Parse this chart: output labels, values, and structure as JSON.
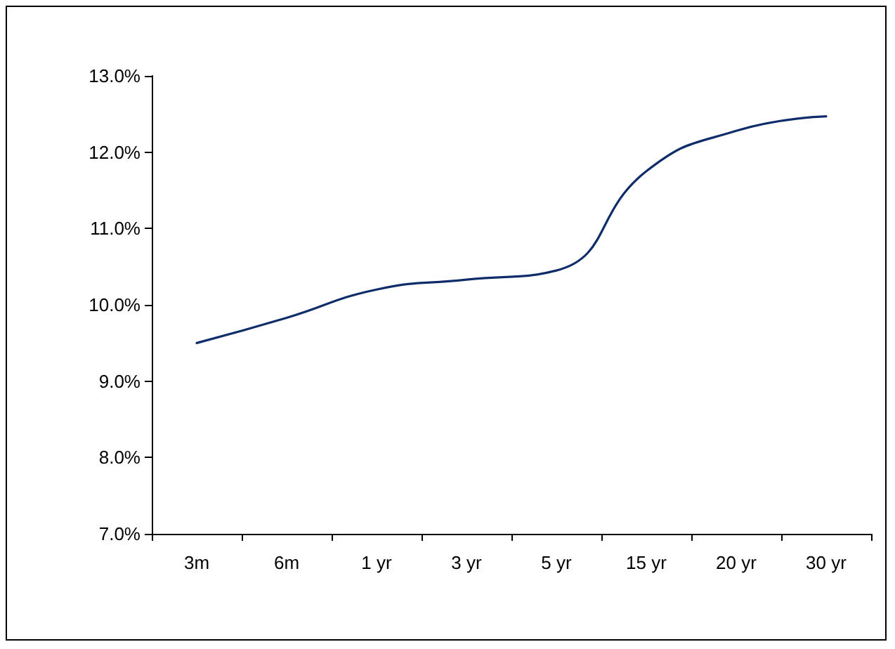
{
  "chart_data": {
    "type": "line",
    "categories": [
      "3m",
      "6m",
      "1 yr",
      "3 yr",
      "5 yr",
      "15 yr",
      "20 yr",
      "30 yr"
    ],
    "series": [
      {
        "color": "#0f2d6b",
        "values": [
          9.5,
          9.83,
          10.2,
          10.33,
          10.45,
          11.75,
          12.28,
          12.47
        ]
      }
    ],
    "ylim": [
      7,
      13
    ],
    "yticks": [
      {
        "value": 7,
        "label": "7.0%"
      },
      {
        "value": 8,
        "label": "8.0%"
      },
      {
        "value": 9,
        "label": "9.0%"
      },
      {
        "value": 10,
        "label": "10.0%"
      },
      {
        "value": 11,
        "label": "11.0%"
      },
      {
        "value": 12,
        "label": "12.0%"
      },
      {
        "value": 13,
        "label": "13.0%"
      }
    ],
    "grid": false,
    "marker": "none",
    "line_style": "solid"
  }
}
